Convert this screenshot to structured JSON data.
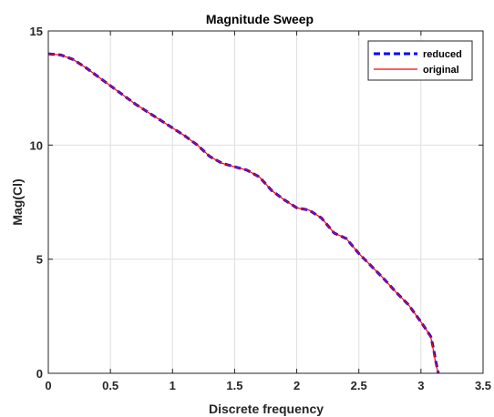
{
  "chart_data": {
    "type": "line",
    "title": "Magnitude Sweep",
    "xlabel": "Discrete frequency",
    "ylabel": "Mag(Cl)",
    "xlim": [
      0,
      3.5
    ],
    "ylim": [
      0,
      15
    ],
    "x_ticks": [
      0,
      0.5,
      1,
      1.5,
      2,
      2.5,
      3,
      3.5
    ],
    "x_tick_labels": [
      "0",
      "0.5",
      "1",
      "1.5",
      "2",
      "2.5",
      "3",
      "3.5"
    ],
    "y_ticks": [
      0,
      5,
      10,
      15
    ],
    "y_tick_labels": [
      "0",
      "5",
      "10",
      "15"
    ],
    "grid": true,
    "legend_position": "top-right",
    "series": [
      {
        "name": "reduced",
        "color": "#0000ff",
        "style": "dashed",
        "x": [
          0,
          0.1,
          0.2,
          0.3,
          0.4,
          0.5,
          0.6,
          0.7,
          0.8,
          0.9,
          1.0,
          1.1,
          1.2,
          1.3,
          1.4,
          1.5,
          1.6,
          1.7,
          1.8,
          1.9,
          2.0,
          2.1,
          2.2,
          2.3,
          2.4,
          2.5,
          2.6,
          2.7,
          2.8,
          2.9,
          3.0,
          3.05,
          3.08,
          3.1,
          3.12,
          3.14
        ],
        "y": [
          14.0,
          13.95,
          13.75,
          13.4,
          13.0,
          12.6,
          12.2,
          11.8,
          11.45,
          11.1,
          10.75,
          10.4,
          10.0,
          9.5,
          9.2,
          9.05,
          8.9,
          8.6,
          8.0,
          7.6,
          7.25,
          7.15,
          6.8,
          6.15,
          5.9,
          5.25,
          4.7,
          4.15,
          3.55,
          3.0,
          2.25,
          1.85,
          1.6,
          1.1,
          0.5,
          0.0
        ]
      },
      {
        "name": "original",
        "color": "#ff0000",
        "style": "solid",
        "x": [
          0,
          0.1,
          0.2,
          0.3,
          0.4,
          0.5,
          0.6,
          0.7,
          0.8,
          0.9,
          1.0,
          1.1,
          1.2,
          1.3,
          1.4,
          1.5,
          1.6,
          1.7,
          1.8,
          1.9,
          2.0,
          2.1,
          2.2,
          2.3,
          2.4,
          2.5,
          2.6,
          2.7,
          2.8,
          2.9,
          3.0,
          3.05,
          3.08,
          3.09,
          3.12,
          3.14
        ],
        "y": [
          14.0,
          13.95,
          13.75,
          13.4,
          13.0,
          12.6,
          12.2,
          11.8,
          11.45,
          11.1,
          10.75,
          10.4,
          10.0,
          9.5,
          9.2,
          9.05,
          8.9,
          8.6,
          8.0,
          7.6,
          7.25,
          7.15,
          6.8,
          6.15,
          5.9,
          5.25,
          4.7,
          4.15,
          3.55,
          3.0,
          2.25,
          1.85,
          1.55,
          1.3,
          0.4,
          0.0
        ]
      }
    ]
  }
}
